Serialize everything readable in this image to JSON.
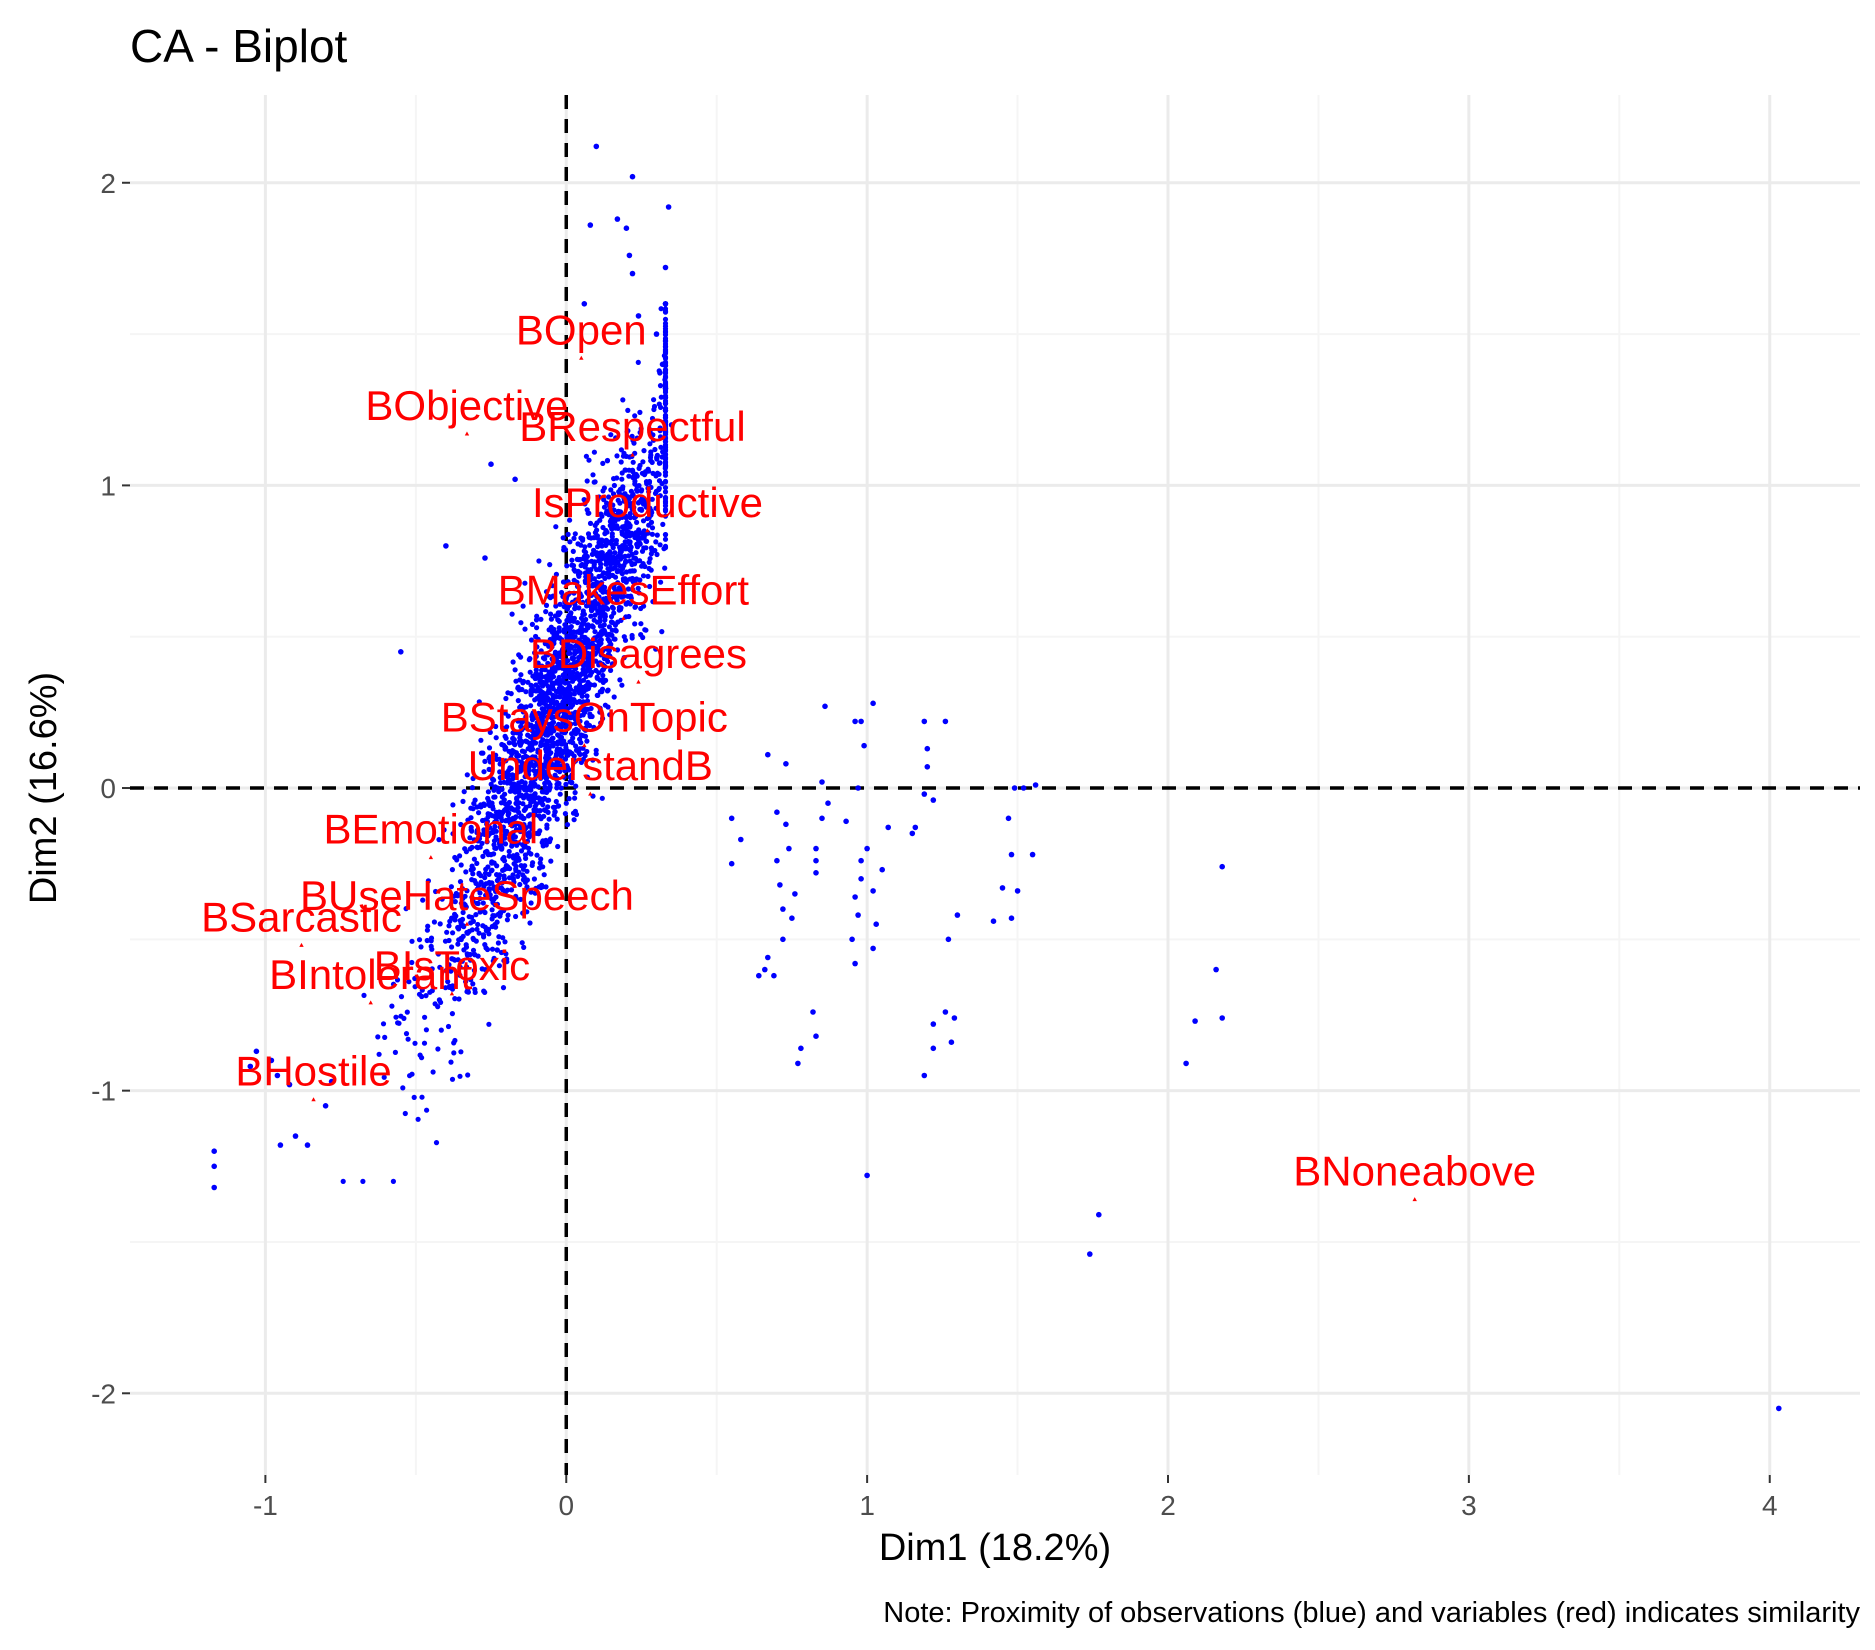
{
  "chart_data": {
    "type": "scatter",
    "title": "CA - Biplot",
    "xlabel": "Dim1 (18.2%)",
    "ylabel": "Dim2 (16.6%)",
    "caption": "Note: Proximity of observations (blue) and variables (red) indicates similarity",
    "xlim": [
      -1.45,
      4.3
    ],
    "ylim": [
      -2.27,
      2.29
    ],
    "x_ticks": [
      -1,
      0,
      1,
      2,
      3,
      4
    ],
    "x_tick_labels": [
      "-1",
      "0",
      "1",
      "2",
      "3",
      "4"
    ],
    "y_ticks": [
      -2,
      -1,
      0,
      1,
      2
    ],
    "y_tick_labels": [
      "-2",
      "-1",
      "0",
      "1",
      "2"
    ],
    "grid": true,
    "reference_lines": {
      "x": 0,
      "y": 0,
      "style": "dashed"
    },
    "colors": {
      "observations": "#0000ff",
      "variables": "#ff0000",
      "grid_major": "#ebebeb",
      "grid_minor": "#f5f5f5"
    },
    "variables": [
      {
        "label": "BOpen",
        "x": 0.05,
        "y": 1.42
      },
      {
        "label": "BObjective",
        "x": -0.33,
        "y": 1.17
      },
      {
        "label": "BRespectful",
        "x": 0.22,
        "y": 1.1
      },
      {
        "label": "IsProductive",
        "x": 0.27,
        "y": 0.85
      },
      {
        "label": "BMakesEffort",
        "x": 0.19,
        "y": 0.56
      },
      {
        "label": "BDisagrees",
        "x": 0.24,
        "y": 0.35
      },
      {
        "label": "BStaysOnTopic",
        "x": 0.06,
        "y": 0.14
      },
      {
        "label": "UnderstandB",
        "x": 0.08,
        "y": -0.02
      },
      {
        "label": "BEmotional",
        "x": -0.45,
        "y": -0.23
      },
      {
        "label": "BUseHateSpeech",
        "x": -0.33,
        "y": -0.45
      },
      {
        "label": "BSarcastic",
        "x": -0.88,
        "y": -0.52
      },
      {
        "label": "BIntolerant",
        "x": -0.65,
        "y": -0.71
      },
      {
        "label": "BIsToxic",
        "x": -0.38,
        "y": -0.68
      },
      {
        "label": "BHostile",
        "x": -0.84,
        "y": -1.03
      },
      {
        "label": "BNoneabove",
        "x": 2.82,
        "y": -1.36
      }
    ],
    "observations_cluster": {
      "description_points": "dense band",
      "x_range": [
        -1.18,
        0.35
      ],
      "y_range": [
        -1.32,
        2.12
      ],
      "count": 2600
    },
    "observations": [
      {
        "x": 0.1,
        "y": 2.12
      },
      {
        "x": 0.22,
        "y": 2.02
      },
      {
        "x": 0.34,
        "y": 1.92
      },
      {
        "x": 0.17,
        "y": 1.88
      },
      {
        "x": 0.08,
        "y": 1.86
      },
      {
        "x": 0.2,
        "y": 1.85
      },
      {
        "x": 0.21,
        "y": 1.76
      },
      {
        "x": 0.33,
        "y": 1.72
      },
      {
        "x": 0.22,
        "y": 1.7
      },
      {
        "x": 0.06,
        "y": 1.6
      },
      {
        "x": 0.24,
        "y": 1.56
      },
      {
        "x": 0.3,
        "y": 1.5
      },
      {
        "x": 0.32,
        "y": 1.4
      },
      {
        "x": 0.33,
        "y": 1.32
      },
      {
        "x": 0.35,
        "y": 1.2
      },
      {
        "x": -0.25,
        "y": 1.07
      },
      {
        "x": -0.17,
        "y": 1.02
      },
      {
        "x": -0.4,
        "y": 0.8
      },
      {
        "x": -0.27,
        "y": 0.76
      },
      {
        "x": -0.55,
        "y": 0.45
      },
      {
        "x": 0.86,
        "y": 0.27
      },
      {
        "x": 1.02,
        "y": 0.28
      },
      {
        "x": 0.98,
        "y": 0.22
      },
      {
        "x": 0.96,
        "y": 0.22
      },
      {
        "x": 1.19,
        "y": 0.22
      },
      {
        "x": 1.26,
        "y": 0.22
      },
      {
        "x": 0.99,
        "y": 0.14
      },
      {
        "x": 1.2,
        "y": 0.13
      },
      {
        "x": 0.67,
        "y": 0.11
      },
      {
        "x": 0.73,
        "y": 0.08
      },
      {
        "x": 1.2,
        "y": 0.07
      },
      {
        "x": 0.85,
        "y": 0.02
      },
      {
        "x": 0.97,
        "y": 0.0
      },
      {
        "x": 1.49,
        "y": 0.0
      },
      {
        "x": 1.56,
        "y": 0.01
      },
      {
        "x": 1.52,
        "y": 0.0
      },
      {
        "x": 1.19,
        "y": -0.02
      },
      {
        "x": 1.22,
        "y": -0.04
      },
      {
        "x": 0.87,
        "y": -0.05
      },
      {
        "x": 0.7,
        "y": -0.08
      },
      {
        "x": 0.55,
        "y": -0.1
      },
      {
        "x": 0.73,
        "y": -0.12
      },
      {
        "x": 0.85,
        "y": -0.1
      },
      {
        "x": 0.93,
        "y": -0.11
      },
      {
        "x": 1.07,
        "y": -0.13
      },
      {
        "x": 1.16,
        "y": -0.13
      },
      {
        "x": 1.47,
        "y": -0.1
      },
      {
        "x": 0.58,
        "y": -0.17
      },
      {
        "x": 0.74,
        "y": -0.2
      },
      {
        "x": 0.83,
        "y": -0.2
      },
      {
        "x": 1.0,
        "y": -0.2
      },
      {
        "x": 1.15,
        "y": -0.15
      },
      {
        "x": 1.48,
        "y": -0.22
      },
      {
        "x": 1.55,
        "y": -0.22
      },
      {
        "x": 0.55,
        "y": -0.25
      },
      {
        "x": 0.7,
        "y": -0.24
      },
      {
        "x": 0.83,
        "y": -0.24
      },
      {
        "x": 0.98,
        "y": -0.24
      },
      {
        "x": 1.05,
        "y": -0.27
      },
      {
        "x": 0.83,
        "y": -0.28
      },
      {
        "x": 0.71,
        "y": -0.32
      },
      {
        "x": 0.98,
        "y": -0.3
      },
      {
        "x": 1.45,
        "y": -0.33
      },
      {
        "x": 1.5,
        "y": -0.34
      },
      {
        "x": 2.18,
        "y": -0.26
      },
      {
        "x": 0.76,
        "y": -0.35
      },
      {
        "x": 0.96,
        "y": -0.36
      },
      {
        "x": 1.02,
        "y": -0.34
      },
      {
        "x": 0.72,
        "y": -0.4
      },
      {
        "x": 0.75,
        "y": -0.43
      },
      {
        "x": 0.97,
        "y": -0.42
      },
      {
        "x": 1.03,
        "y": -0.45
      },
      {
        "x": 1.3,
        "y": -0.42
      },
      {
        "x": 1.42,
        "y": -0.44
      },
      {
        "x": 1.48,
        "y": -0.43
      },
      {
        "x": 0.72,
        "y": -0.5
      },
      {
        "x": 0.95,
        "y": -0.5
      },
      {
        "x": 1.27,
        "y": -0.5
      },
      {
        "x": 1.02,
        "y": -0.53
      },
      {
        "x": 0.67,
        "y": -0.56
      },
      {
        "x": 0.66,
        "y": -0.6
      },
      {
        "x": 0.96,
        "y": -0.58
      },
      {
        "x": 0.64,
        "y": -0.62
      },
      {
        "x": 0.69,
        "y": -0.62
      },
      {
        "x": 2.16,
        "y": -0.6
      },
      {
        "x": 0.82,
        "y": -0.74
      },
      {
        "x": 1.26,
        "y": -0.74
      },
      {
        "x": 1.29,
        "y": -0.76
      },
      {
        "x": 1.22,
        "y": -0.78
      },
      {
        "x": 2.18,
        "y": -0.76
      },
      {
        "x": 2.09,
        "y": -0.77
      },
      {
        "x": 0.83,
        "y": -0.82
      },
      {
        "x": 1.28,
        "y": -0.84
      },
      {
        "x": 0.78,
        "y": -0.86
      },
      {
        "x": 1.22,
        "y": -0.86
      },
      {
        "x": 0.77,
        "y": -0.91
      },
      {
        "x": 2.06,
        "y": -0.91
      },
      {
        "x": 1.19,
        "y": -0.95
      },
      {
        "x": 1.0,
        "y": -1.28
      },
      {
        "x": 1.77,
        "y": -1.41
      },
      {
        "x": 1.74,
        "y": -1.54
      },
      {
        "x": 4.03,
        "y": -2.05
      },
      {
        "x": -1.17,
        "y": -1.2
      },
      {
        "x": -1.17,
        "y": -1.25
      },
      {
        "x": -1.17,
        "y": -1.32
      },
      {
        "x": -0.95,
        "y": -1.18
      },
      {
        "x": -0.86,
        "y": -1.18
      },
      {
        "x": -0.9,
        "y": -1.15
      },
      {
        "x": -1.05,
        "y": -0.92
      },
      {
        "x": -1.03,
        "y": -0.87
      },
      {
        "x": -0.98,
        "y": -0.9
      },
      {
        "x": -0.96,
        "y": -0.95
      },
      {
        "x": -0.92,
        "y": -0.98
      },
      {
        "x": -0.8,
        "y": -1.05
      },
      {
        "x": -0.78,
        "y": -0.97
      }
    ]
  }
}
